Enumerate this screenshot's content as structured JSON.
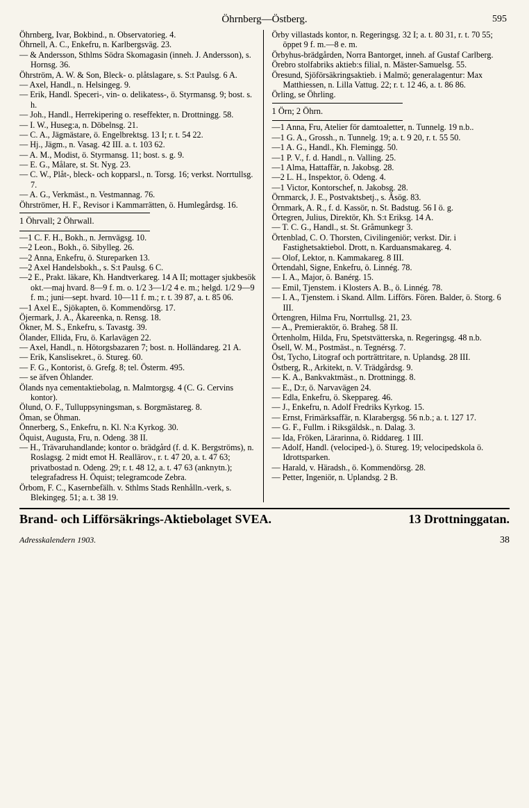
{
  "header": {
    "title": "Öhrnberg—Östberg.",
    "page_number": "595"
  },
  "left_column": [
    {
      "t": "entry",
      "v": "Öhrnberg, Ivar, Bokbind., n. Observatorieg. 4."
    },
    {
      "t": "entry",
      "v": "Öhrnell, A. C., Enkefru, n. Karlbergsväg. 23."
    },
    {
      "t": "entry",
      "v": "— & Andersson, Sthlms Södra Skomagasin (inneh. J. Andersson), s. Hornsg. 36."
    },
    {
      "t": "entry",
      "v": "Öhrström, A. W. & Son, Bleck- o. plåtslagare, s. S:t Paulsg. 6 A."
    },
    {
      "t": "entry",
      "v": "— Axel, Handl., n. Helsingeg. 9."
    },
    {
      "t": "entry",
      "v": "— Erik, Handl. Speceri-, vin- o. delikatess-, ö. Styrmansg. 9; bost. s. h."
    },
    {
      "t": "entry",
      "v": "— Joh., Handl., Herrekipering o. reseffekter, n. Drottningg. 58."
    },
    {
      "t": "entry",
      "v": "— I. W., Huseg:a, n. Döbelnsg. 21."
    },
    {
      "t": "entry",
      "v": "— C. A., Jägmästare, ö. Engelbrektsg. 13 I; r. t. 54 22."
    },
    {
      "t": "entry",
      "v": "— Hj., Jägm., n. Vasag. 42 III. a. t. 103 62."
    },
    {
      "t": "entry",
      "v": "— A. M., Modist, ö. Styrmansg. 11; bost. s. g. 9."
    },
    {
      "t": "entry",
      "v": "— E. G., Målare, st. St. Nyg. 23."
    },
    {
      "t": "entry",
      "v": "— C. W., Plåt-, bleck- och kopparsl., n. Torsg. 16; verkst. Norrtullsg. 7."
    },
    {
      "t": "entry",
      "v": "— A. G., Verkmäst., n. Vestmannag. 76."
    },
    {
      "t": "entry",
      "v": "Öhrströmer, H. F., Revisor i Kammarrätten, ö. Humlegårdsg. 16."
    },
    {
      "t": "rule"
    },
    {
      "t": "section",
      "v": "1 Öhrvall; 2 Öhrwall."
    },
    {
      "t": "rule"
    },
    {
      "t": "entry",
      "v": "—1 C. F. H., Bokh., n. Jernvägsg. 10."
    },
    {
      "t": "entry",
      "v": "—2 Leon., Bokh., ö. Sibylleg. 26."
    },
    {
      "t": "entry",
      "v": "—2 Anna, Enkefru, ö. Stureparken 13."
    },
    {
      "t": "entry",
      "v": "—2 Axel Handelsbokh., s. S:t Paulsg. 6 C."
    },
    {
      "t": "entry",
      "v": "—2 E., Prakt. läkare, Kh. Handtverkareg. 14 A II; mottager sjukbesök okt.—maj hvard. 8—9 f. m. o. 1/2 3—1/2 4 e. m.; helgd. 1/2 9—9 f. m.; juni—sept. hvard. 10—11 f. m.; r. t. 39 87, a. t. 85 06."
    },
    {
      "t": "entry",
      "v": "—1 Axel E., Sjökapten, ö. Kommendörsg. 17."
    },
    {
      "t": "entry",
      "v": "Öjermark, J. A., Åkareenka, n. Rensg. 18."
    },
    {
      "t": "entry",
      "v": "Ökner, M. S., Enkefru, s. Tavastg. 39."
    },
    {
      "t": "entry",
      "v": "Ölander, Ellida, Fru, ö. Karlavägen 22."
    },
    {
      "t": "entry",
      "v": "— Axel, Handl., n. Hötorgsbazaren 7; bost. n. Holländareg. 21 A."
    },
    {
      "t": "entry",
      "v": "— Erik, Kanslisekret., ö. Stureg. 60."
    },
    {
      "t": "entry",
      "v": "— F. G., Kontorist, ö. Grefg. 8; tel. Österm. 495."
    },
    {
      "t": "entry",
      "v": "— se äfven Öhlander."
    },
    {
      "t": "entry",
      "v": "Ölands nya cementaktiebolag, n. Malmtorgsg. 4 (C. G. Cervins kontor)."
    },
    {
      "t": "entry",
      "v": "Ölund, O. F., Tulluppsyningsman, s. Borgmästareg. 8."
    },
    {
      "t": "entry",
      "v": "Öman, se Öhman."
    },
    {
      "t": "entry",
      "v": "Önnerberg, S., Enkefru, n. Kl. N:a Kyrkog. 30."
    },
    {
      "t": "entry",
      "v": "Öquist, Augusta, Fru, n. Odeng. 38 II."
    },
    {
      "t": "entry",
      "v": "— H., Trävaruhandlande; kontor o. brädgård (f. d. K. Bergströms), n. Roslagsg. 2 midt emot H. Reallärov., r. t. 47 20, a. t. 47 63; privatbostad n. Odeng. 29; r. t. 48 12, a. t. 47 63 (anknytn.); telegrafadress H. Öquist; telegramcode Zebra."
    },
    {
      "t": "entry",
      "v": "Örbom, F. C., Kasernbefälh. v. Sthlms Stads Renhålln.-verk, s. Blekingeg. 51; a. t. 38 19."
    }
  ],
  "right_column": [
    {
      "t": "entry",
      "v": "Örby villastads kontor, n. Regeringsg. 32 I; a. t. 80 31, r. t. 70 55; öppet 9 f. m.—8 e. m."
    },
    {
      "t": "entry",
      "v": "Örbyhus-brädgården, Norra Bantorget, inneh. af Gustaf Carlberg."
    },
    {
      "t": "entry",
      "v": "Örebro stolfabriks aktieb:s filial, n. Mäster-Samuelsg. 55."
    },
    {
      "t": "entry",
      "v": "Öresund, Sjöförsäkringsaktieb. i Malmö; generalagentur: Max Matthiessen, n. Lilla Vattug. 22; r. t. 12 46, a. t. 86 86."
    },
    {
      "t": "entry",
      "v": "Örling, se Öhrling."
    },
    {
      "t": "rule"
    },
    {
      "t": "section",
      "v": "1 Örn; 2 Öhrn."
    },
    {
      "t": "rule"
    },
    {
      "t": "entry",
      "v": "—1 Anna, Fru, Atelier för damtoaletter, n. Tunnelg. 19 n.b.."
    },
    {
      "t": "entry",
      "v": "—1 G. A., Grossh., n. Tunnelg. 19; a. t. 9 20, r. t. 55 50."
    },
    {
      "t": "entry",
      "v": "—1 A. G., Handl., Kh. Flemingg. 50."
    },
    {
      "t": "entry",
      "v": "—1 P. V., f. d. Handl., n. Valling. 25."
    },
    {
      "t": "entry",
      "v": "—1 Alma, Hattaffär, n. Jakobsg. 28."
    },
    {
      "t": "entry",
      "v": "—2 L. H., Inspektor, ö. Odeng. 4."
    },
    {
      "t": "entry",
      "v": "—1 Victor, Kontorschef, n. Jakobsg. 28."
    },
    {
      "t": "entry",
      "v": "Örnmarck, J. E., Postvaktsbetj., s. Åsög. 83."
    },
    {
      "t": "entry",
      "v": "Örnmark, A. R., f. d. Kassör, n. St. Badstug. 56 I ö. g."
    },
    {
      "t": "entry",
      "v": "Örtegren, Julius, Direktör, Kh. S:t Eriksg. 14 A."
    },
    {
      "t": "entry",
      "v": "— T. C. G., Handl., st. St. Gråmunkegr 3."
    },
    {
      "t": "entry",
      "v": "Örtenblad, C. O. Thorsten, Civilingeniör; verkst. Dir. i Fastighetsaktiebol. Drott, n. Karduansmakareg. 4."
    },
    {
      "t": "entry",
      "v": "— Olof, Lektor, n. Kammakareg. 8 III."
    },
    {
      "t": "entry",
      "v": "Örtendahl, Signe, Enkefru, ö. Linnég. 78."
    },
    {
      "t": "entry",
      "v": "— I. A., Major, ö. Banérg. 15."
    },
    {
      "t": "entry",
      "v": "— Emil, Tjenstem. i Klosters A. B., ö. Linnég. 78."
    },
    {
      "t": "entry",
      "v": "— I. A., Tjenstem. i Skand. Allm. Lifförs. Fören. Balder, ö. Storg. 6 III."
    },
    {
      "t": "entry",
      "v": "Örtengren, Hilma Fru, Norrtullsg. 21, 23."
    },
    {
      "t": "entry",
      "v": "— A., Premieraktör, ö. Braheg. 58 II."
    },
    {
      "t": "entry",
      "v": "Örtenholm, Hilda, Fru, Spetstvätterska, n. Regeringsg. 48 n.b."
    },
    {
      "t": "entry",
      "v": "Ösell, W. M., Postmäst., n. Tegnérsg. 7."
    },
    {
      "t": "entry",
      "v": "Öst, Tycho, Litograf och porträttritare, n. Uplandsg. 28 III."
    },
    {
      "t": "entry",
      "v": "Östberg, R., Arkitekt, n. V. Trädgårdsg. 9."
    },
    {
      "t": "entry",
      "v": "— K. A., Bankvaktmäst., n. Drottningg. 8."
    },
    {
      "t": "entry",
      "v": "— E., D:r, ö. Narvavägen 24."
    },
    {
      "t": "entry",
      "v": "— Edla, Enkefru, ö. Skeppareg. 46."
    },
    {
      "t": "entry",
      "v": "— J., Enkefru, n. Adolf Fredriks Kyrkog. 15."
    },
    {
      "t": "entry",
      "v": "— Ernst, Frimärksaffär, n. Klarabergsg. 56 n.b.; a. t. 127 17."
    },
    {
      "t": "entry",
      "v": "— G. F., Fullm. i Riksgäldsk., n. Dalag. 3."
    },
    {
      "t": "entry",
      "v": "— Ida, Fröken, Lärarinna, ö. Riddareg. 1 III."
    },
    {
      "t": "entry",
      "v": "— Adolf, Handl. (velociped-), ö. Stureg. 19; velocipedskola ö. Idrottsparken."
    },
    {
      "t": "entry",
      "v": "— Harald, v. Häradsh., ö. Kommendörsg. 28."
    },
    {
      "t": "entry",
      "v": "— Petter, Ingeniör, n. Uplandsg. 2 B."
    }
  ],
  "footer": {
    "ad_left": "Brand- och Lifförsäkrings-Aktiebolaget SVEA.",
    "ad_right": "13 Drottninggatan.",
    "imprint": "Adresskalendern 1903.",
    "sheet": "38"
  }
}
